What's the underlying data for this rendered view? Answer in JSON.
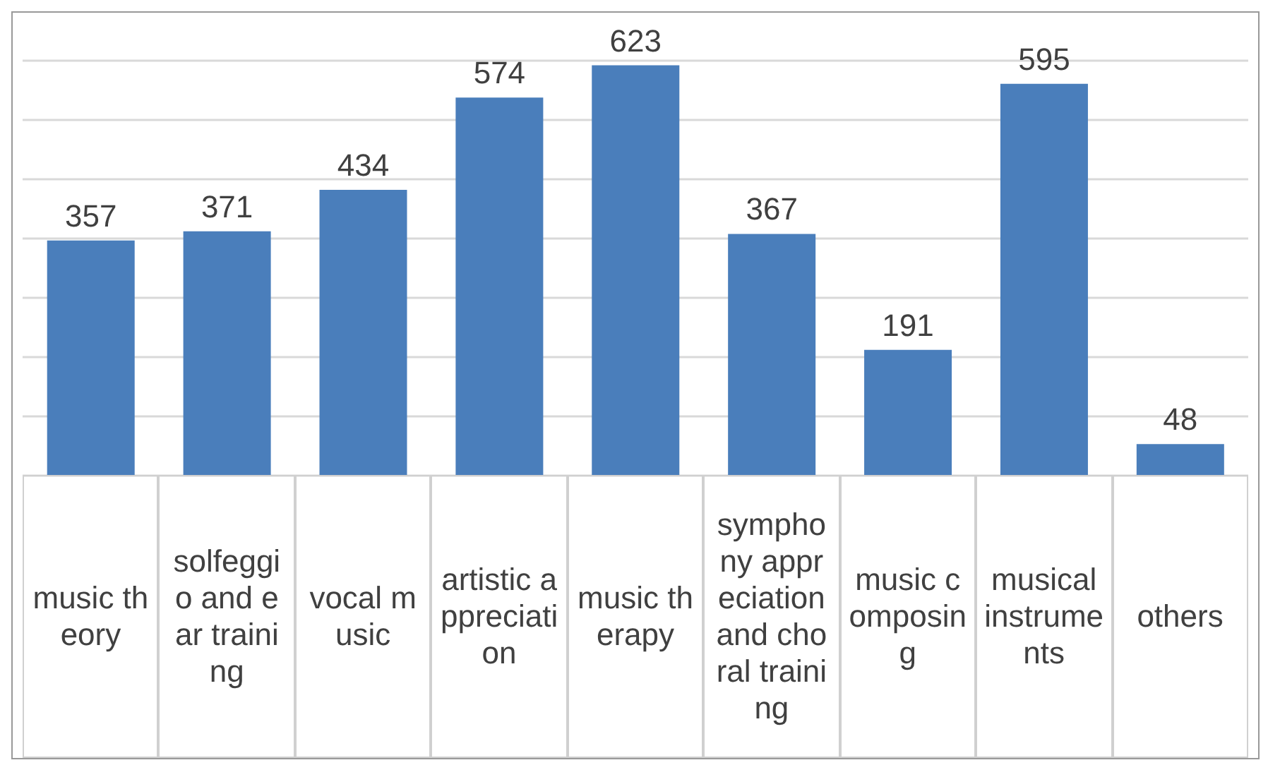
{
  "chart_data": {
    "type": "bar",
    "categories": [
      "music theory",
      "solfeggio and ear training",
      "vocal music",
      "artistic appreciation",
      "music therapy",
      "symphony appreciation and choral training",
      "music composing",
      "musical instruments",
      "others"
    ],
    "values": [
      357,
      371,
      434,
      574,
      623,
      367,
      191,
      595,
      48
    ],
    "color": "#4a7ebb",
    "data_labels": true,
    "grid": "y",
    "tick_labels": "x"
  }
}
